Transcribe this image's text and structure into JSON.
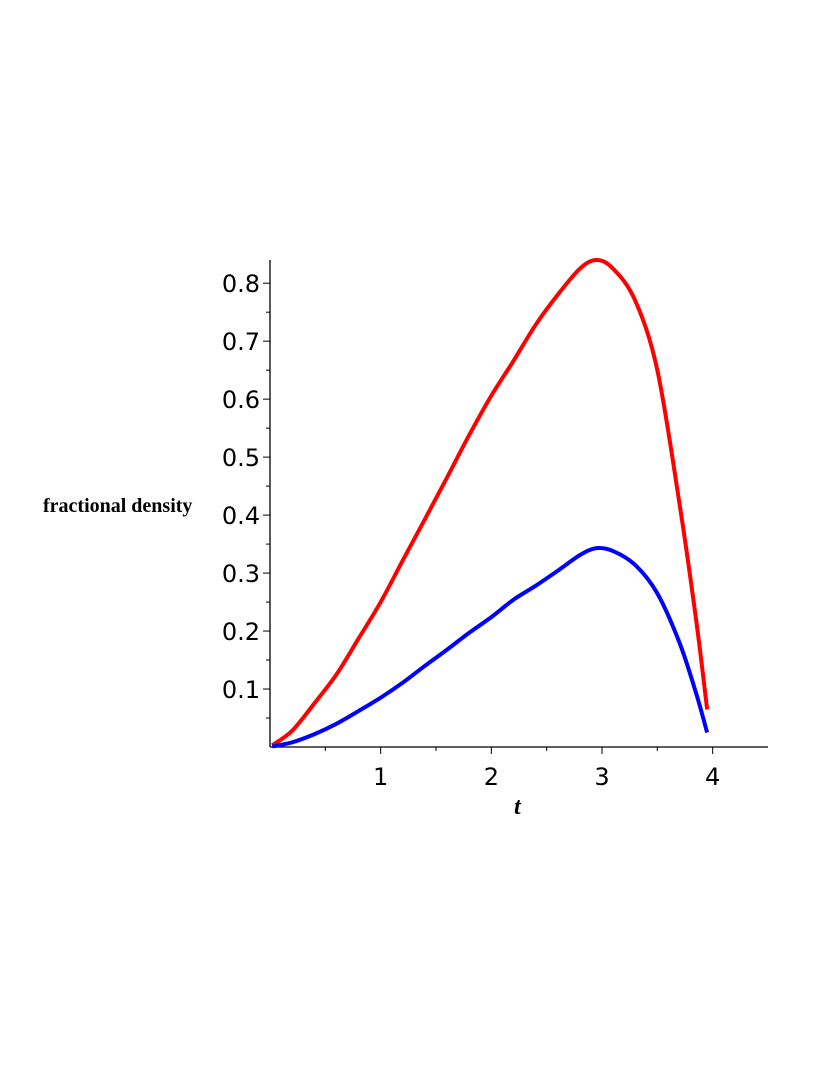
{
  "chart_data": {
    "type": "line",
    "title": "",
    "xlabel": "t",
    "ylabel": "fractional density",
    "xlim": [
      0.0,
      4.5
    ],
    "ylim": [
      0.0,
      0.84
    ],
    "x_ticks": [
      1,
      2,
      3,
      4
    ],
    "x_tick_labels": [
      "1",
      "2",
      "3",
      "4"
    ],
    "x_minor_ticks": [
      0.5,
      1.5,
      2.5,
      3.5
    ],
    "y_ticks": [
      0.1,
      0.2,
      0.3,
      0.4,
      0.5,
      0.6,
      0.7,
      0.8
    ],
    "y_tick_labels": [
      "0.1",
      "0.2",
      "0.3",
      "0.4",
      "0.5",
      "0.6",
      "0.7",
      "0.8"
    ],
    "y_minor_ticks": [
      0.05,
      0.15,
      0.25,
      0.35,
      0.45,
      0.55,
      0.65,
      0.75
    ],
    "grid": false,
    "legend": "none",
    "series": [
      {
        "color": "#ff0000",
        "x": [
          0.02,
          0.2,
          0.4,
          0.6,
          0.8,
          1.0,
          1.2,
          1.4,
          1.6,
          1.8,
          2.0,
          2.2,
          2.4,
          2.6,
          2.8,
          2.95,
          3.1,
          3.3,
          3.5,
          3.7,
          3.85,
          3.95
        ],
        "y": [
          0.003,
          0.028,
          0.075,
          0.125,
          0.187,
          0.25,
          0.322,
          0.393,
          0.465,
          0.538,
          0.606,
          0.666,
          0.728,
          0.78,
          0.825,
          0.84,
          0.825,
          0.77,
          0.65,
          0.42,
          0.22,
          0.065
        ]
      },
      {
        "color": "#0000ff",
        "x": [
          0.02,
          0.2,
          0.4,
          0.6,
          0.8,
          1.0,
          1.2,
          1.4,
          1.6,
          1.8,
          2.0,
          2.2,
          2.4,
          2.6,
          2.8,
          2.95,
          3.1,
          3.3,
          3.5,
          3.7,
          3.85,
          3.95
        ],
        "y": [
          0.001,
          0.008,
          0.022,
          0.04,
          0.062,
          0.085,
          0.111,
          0.14,
          0.168,
          0.197,
          0.224,
          0.254,
          0.278,
          0.304,
          0.331,
          0.343,
          0.338,
          0.314,
          0.265,
          0.18,
          0.093,
          0.025
        ]
      }
    ]
  }
}
